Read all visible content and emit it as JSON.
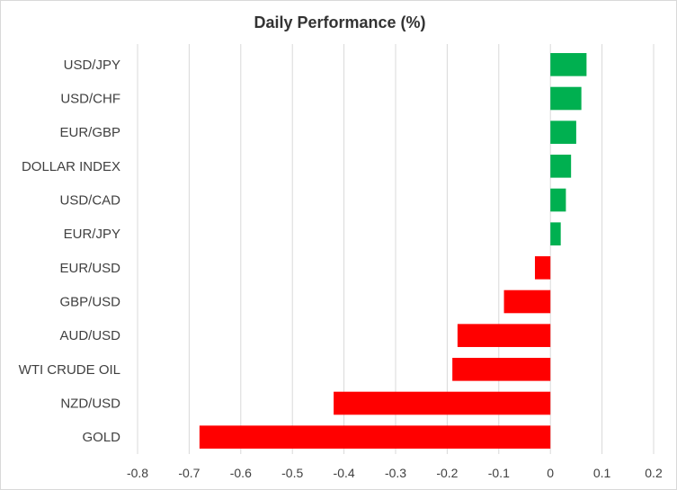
{
  "chart_data": {
    "type": "bar",
    "orientation": "horizontal",
    "title": "Daily Performance (%)",
    "xlabel": "",
    "ylabel": "",
    "categories": [
      "USD/JPY",
      "USD/CHF",
      "EUR/GBP",
      "DOLLAR INDEX",
      "USD/CAD",
      "EUR/JPY",
      "EUR/USD",
      "GBP/USD",
      "AUD/USD",
      "WTI CRUDE OIL",
      "NZD/USD",
      "GOLD"
    ],
    "values": [
      0.07,
      0.06,
      0.05,
      0.04,
      0.03,
      0.02,
      -0.03,
      -0.09,
      -0.18,
      -0.19,
      -0.42,
      -0.68
    ],
    "xlim": [
      -0.8,
      0.2
    ],
    "xticks": [
      "-0.8",
      "-0.7",
      "-0.6",
      "-0.5",
      "-0.4",
      "-0.3",
      "-0.2",
      "-0.1",
      "0",
      "0.1",
      "0.2"
    ],
    "grid": "vertical",
    "legend": "none",
    "colors": {
      "positive": "#00b050",
      "negative": "#ff0000"
    }
  }
}
